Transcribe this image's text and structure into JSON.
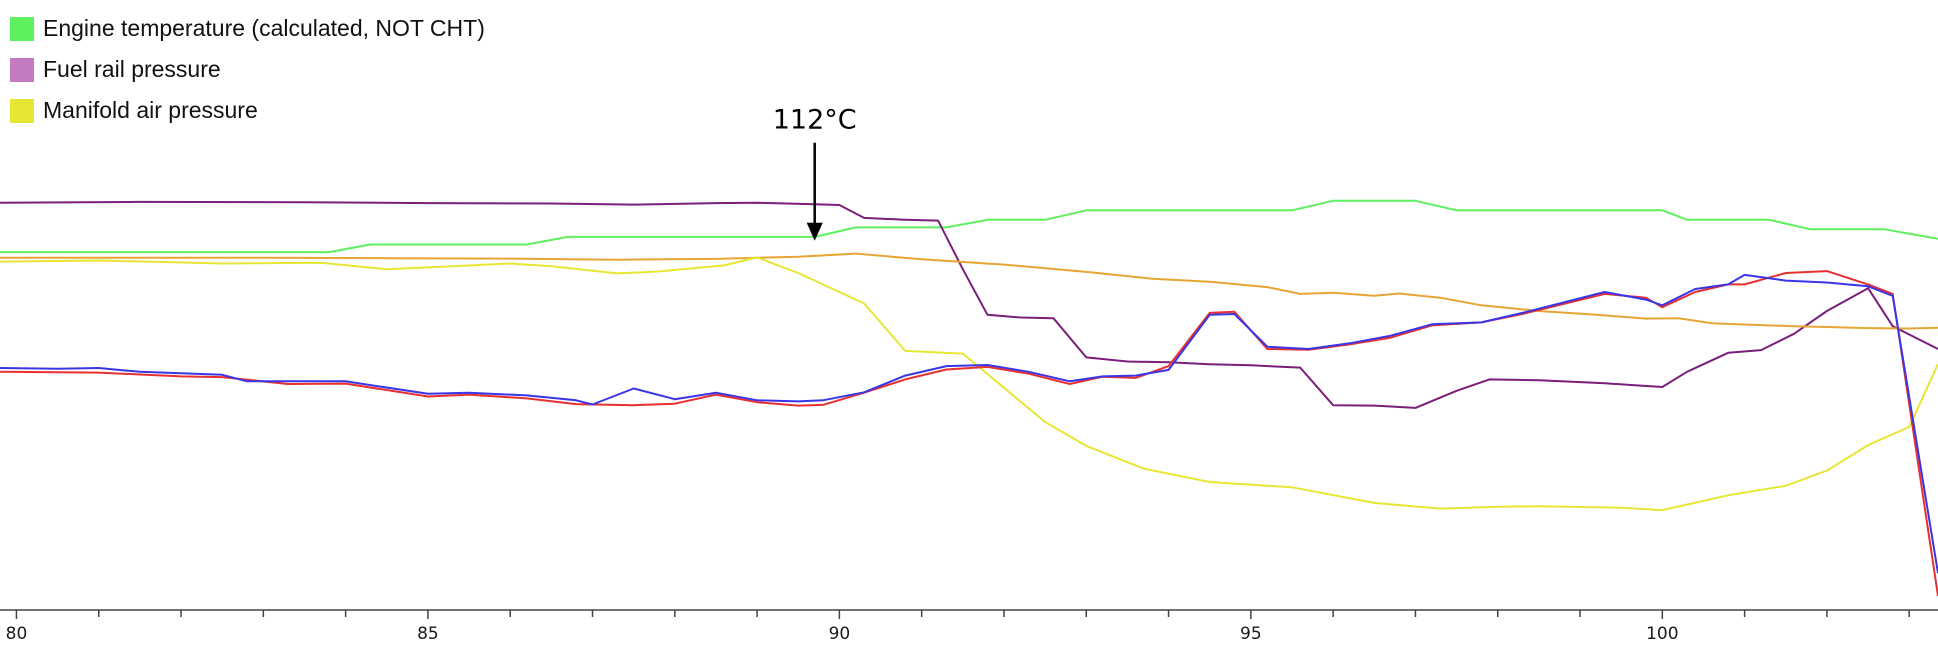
{
  "chart_data": {
    "type": "line",
    "xlim": [
      79.8,
      103.35
    ],
    "ylim": [
      0,
      100
    ],
    "x_ticks_major": [
      80,
      85,
      90,
      95,
      100
    ],
    "x_ticks_minor": [
      81,
      82,
      83,
      84,
      86,
      87,
      88,
      89,
      91,
      92,
      93,
      94,
      96,
      97,
      98,
      99,
      101,
      102,
      103
    ],
    "legend": [
      {
        "label": "Engine temperature (calculated, NOT CHT)",
        "color": "#5ff05f"
      },
      {
        "label": "Fuel rail pressure",
        "color": "#c27bc2"
      },
      {
        "label": "Manifold air pressure",
        "color": "#e6e635"
      }
    ],
    "annotation": {
      "text": "112°C",
      "x": 89.7,
      "y": 73.5
    },
    "series": [
      {
        "color": "#5ff05f",
        "x": [
          79.8,
          83.8,
          84.3,
          86.2,
          86.7,
          89.7,
          90.2,
          91.3,
          91.8,
          92.5,
          93.0,
          95.5,
          96.0,
          97.0,
          97.5,
          100.0,
          100.3,
          101.0,
          101.3,
          101.8,
          102.3,
          102.7,
          103.35
        ],
        "y": [
          70.5,
          70.5,
          72.5,
          72.5,
          74.5,
          74.5,
          77.0,
          77.0,
          79.0,
          79.0,
          81.5,
          81.5,
          84.0,
          84.0,
          81.5,
          81.5,
          79.0,
          79.0,
          79.0,
          76.5,
          76.5,
          76.5,
          74.0
        ]
      },
      {
        "color": "#7a1f7a",
        "x": [
          79.8,
          81.5,
          83.5,
          85.0,
          86.5,
          87.5,
          88.5,
          89.0,
          89.7,
          90.0,
          90.3,
          90.8,
          91.2,
          91.5,
          91.8,
          92.2,
          92.6,
          93.0,
          93.5,
          94.0,
          94.5,
          95.0,
          95.6,
          96.0,
          96.5,
          97.0,
          97.5,
          97.9,
          98.5,
          99.3,
          100.0,
          100.3,
          100.8,
          101.2,
          101.6,
          102.0,
          102.5,
          102.8,
          103.35
        ],
        "y": [
          83.5,
          83.7,
          83.6,
          83.4,
          83.3,
          83.0,
          83.4,
          83.5,
          83.1,
          82.9,
          79.5,
          79.0,
          78.8,
          66.0,
          54.0,
          53.3,
          53.1,
          42.8,
          41.7,
          41.5,
          41.0,
          40.7,
          40.1,
          30.2,
          30.1,
          29.5,
          34.0,
          37.0,
          36.8,
          36.0,
          35.0,
          39.0,
          44.0,
          44.7,
          49.0,
          55.0,
          61.0,
          51.0,
          45.0
        ]
      },
      {
        "color": "#e6a535",
        "x": [
          79.8,
          81.5,
          83.0,
          84.5,
          86.0,
          87.3,
          88.5,
          89.5,
          90.2,
          91.0,
          92.0,
          93.0,
          93.8,
          94.5,
          95.2,
          95.6,
          96.0,
          96.5,
          96.8,
          97.3,
          97.8,
          98.5,
          99.2,
          99.8,
          100.2,
          100.6,
          100.9,
          101.2,
          101.6,
          102.0,
          102.5,
          103.0,
          103.35
        ],
        "y": [
          69.0,
          69.0,
          69.0,
          68.9,
          68.8,
          68.5,
          68.7,
          69.3,
          70.1,
          68.6,
          67.2,
          65.3,
          63.5,
          62.7,
          61.3,
          59.5,
          59.8,
          59.0,
          59.6,
          58.5,
          56.5,
          55.0,
          54.0,
          53.0,
          53.1,
          51.8,
          51.5,
          51.3,
          51.0,
          50.8,
          50.5,
          50.4,
          50.6
        ]
      },
      {
        "color": "#e6e635",
        "x": [
          79.8,
          81.0,
          82.5,
          83.7,
          84.5,
          85.3,
          86.0,
          86.5,
          87.3,
          87.8,
          88.6,
          89.0,
          89.5,
          90.0,
          90.3,
          90.8,
          91.5,
          92.0,
          92.5,
          93.0,
          93.7,
          94.5,
          95.5,
          96.5,
          97.3,
          98.0,
          98.5,
          99.5,
          100.0,
          100.8,
          101.5,
          102.0,
          102.5,
          103.0,
          103.35
        ],
        "y": [
          68.0,
          68.3,
          67.5,
          67.7,
          66.0,
          66.8,
          67.5,
          66.8,
          64.9,
          65.4,
          67.0,
          69.1,
          65.0,
          60.0,
          57.0,
          44.5,
          43.8,
          34.8,
          25.8,
          19.5,
          13.5,
          10.0,
          8.6,
          4.5,
          3.0,
          3.5,
          3.6,
          3.2,
          2.6,
          6.5,
          9.0,
          13.0,
          19.7,
          24.5,
          41.0
        ]
      },
      {
        "color": "#e83030",
        "x": [
          79.8,
          81.0,
          82.0,
          82.5,
          83.3,
          84.0,
          85.0,
          85.5,
          86.2,
          86.8,
          87.5,
          88.0,
          88.5,
          89.0,
          89.5,
          89.8,
          90.3,
          90.8,
          91.3,
          91.8,
          92.3,
          92.8,
          93.2,
          93.6,
          94.0,
          94.5,
          94.8,
          95.2,
          95.7,
          96.2,
          96.7,
          97.2,
          97.8,
          98.3,
          99.3,
          99.8,
          100.0,
          100.4,
          100.8,
          101.0,
          101.5,
          102.0,
          102.5,
          102.8,
          103.35
        ],
        "y": [
          39.0,
          38.8,
          37.8,
          37.6,
          35.8,
          35.9,
          32.5,
          33.0,
          32.0,
          30.5,
          30.2,
          30.6,
          33.0,
          31.0,
          30.1,
          30.3,
          33.5,
          37.0,
          39.6,
          40.3,
          38.5,
          35.8,
          37.7,
          37.4,
          40.5,
          54.5,
          54.8,
          45.0,
          44.8,
          46.2,
          48.0,
          51.2,
          52.0,
          54.2,
          59.5,
          58.5,
          56.0,
          60.0,
          62.0,
          62.0,
          65.0,
          65.5,
          62.0,
          59.5,
          -20.0
        ]
      },
      {
        "color": "#3a35e6",
        "x": [
          79.8,
          80.5,
          81.0,
          81.5,
          82.5,
          82.8,
          83.2,
          84.0,
          85.0,
          85.5,
          86.2,
          86.8,
          87.0,
          87.5,
          88.0,
          88.5,
          89.0,
          89.5,
          89.8,
          90.3,
          90.8,
          91.3,
          91.8,
          92.3,
          92.8,
          93.2,
          93.6,
          94.0,
          94.5,
          94.8,
          95.2,
          95.7,
          96.2,
          96.7,
          97.2,
          97.8,
          98.3,
          99.3,
          99.8,
          100.0,
          100.4,
          100.8,
          101.0,
          101.5,
          102.0,
          102.5,
          102.8,
          103.35
        ],
        "y": [
          40.0,
          39.8,
          40.0,
          39.0,
          38.2,
          36.5,
          36.5,
          36.5,
          33.2,
          33.5,
          32.8,
          31.5,
          30.4,
          34.6,
          31.8,
          33.5,
          31.5,
          31.2,
          31.5,
          33.6,
          38.0,
          40.5,
          40.8,
          39.0,
          36.5,
          37.8,
          38.0,
          39.5,
          54.0,
          54.2,
          45.6,
          45.0,
          46.5,
          48.5,
          51.5,
          52.0,
          54.5,
          60.0,
          58.0,
          56.5,
          60.8,
          62.0,
          64.5,
          63.0,
          62.5,
          61.5,
          59.0,
          -14.0
        ]
      }
    ]
  }
}
